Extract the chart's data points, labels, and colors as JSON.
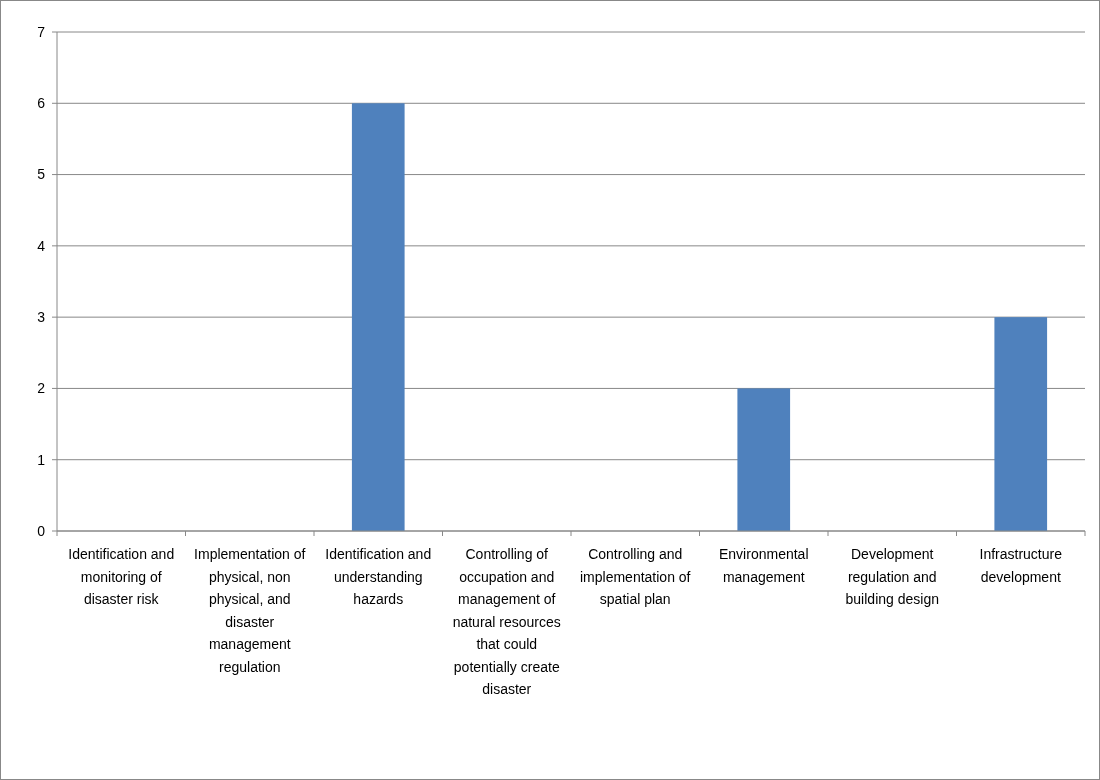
{
  "chart_data": {
    "type": "bar",
    "categories": [
      "Identification and monitoring of disaster risk",
      "Implementation of physical, non physical, and disaster management regulation",
      "Identification and understanding hazards",
      "Controlling of occupation and management of natural resources that could potentially create disaster",
      "Controlling and implementation of spatial plan",
      "Environmental management",
      "Development regulation and building design",
      "Infrastructure development"
    ],
    "values": [
      0,
      0,
      6,
      0,
      0,
      2,
      0,
      3
    ],
    "color": "#4f81bd",
    "ylim": [
      0,
      7
    ],
    "yticks": [
      0,
      1,
      2,
      3,
      4,
      5,
      6,
      7
    ],
    "grid": "y"
  }
}
